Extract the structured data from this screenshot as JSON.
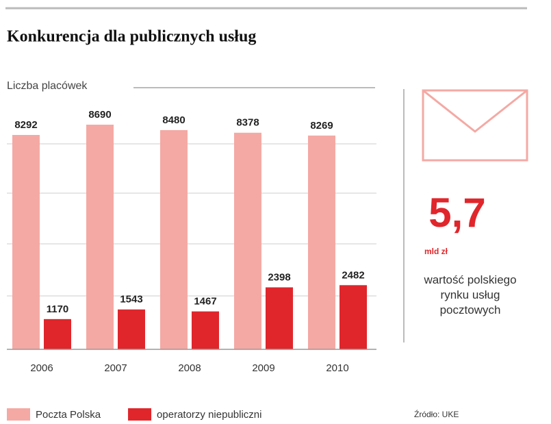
{
  "chart_data": {
    "type": "bar",
    "title": "Konkurencja dla publicznych usług",
    "subtitle": "Liczba placówek",
    "categories": [
      "2006",
      "2007",
      "2008",
      "2009",
      "2010"
    ],
    "series": [
      {
        "name": "Poczta Polska",
        "color": "#f4a9a4",
        "values": [
          8292,
          8690,
          8480,
          8378,
          8269
        ]
      },
      {
        "name": "operatorzy niepubliczni",
        "color": "#e0262b",
        "values": [
          1170,
          1543,
          1467,
          2398,
          2482
        ]
      }
    ],
    "grid": true,
    "legend": "bottom",
    "highlight": {
      "value": "5,7",
      "unit": "mld zł",
      "caption": "wartość polskiego rynku usług pocztowych"
    },
    "source": "Źródło: UKE"
  }
}
